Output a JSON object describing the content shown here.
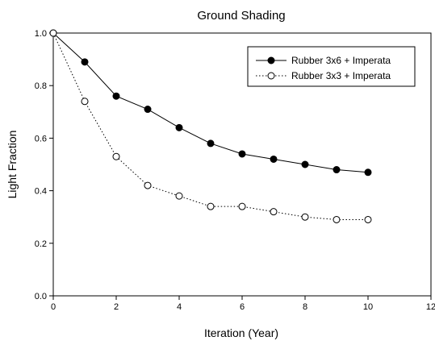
{
  "chart_data": {
    "type": "line",
    "title": "Ground Shading",
    "xlabel": "Iteration (Year)",
    "ylabel": "Light Fraction",
    "xlim": [
      0,
      12
    ],
    "ylim": [
      0,
      1.0
    ],
    "xticks": [
      0,
      2,
      4,
      6,
      8,
      10,
      12
    ],
    "yticks": [
      0.0,
      0.2,
      0.4,
      0.6,
      0.8,
      1.0
    ],
    "xtick_labels": [
      "0",
      "2",
      "4",
      "6",
      "8",
      "10",
      "12"
    ],
    "ytick_labels": [
      "0.0",
      "0.2",
      "0.4",
      "0.6",
      "0.8",
      "1.0"
    ],
    "grid": false,
    "legend_position": "top-right",
    "series": [
      {
        "name": "Rubber 3x6 + Imperata",
        "marker": "filled-circle",
        "line_style": "solid",
        "color": "#000000",
        "x": [
          0,
          1,
          2,
          3,
          4,
          5,
          6,
          7,
          8,
          9,
          10
        ],
        "y": [
          1.0,
          0.89,
          0.76,
          0.71,
          0.64,
          0.58,
          0.54,
          0.52,
          0.5,
          0.48,
          0.47
        ]
      },
      {
        "name": "Rubber 3x3 + Imperata",
        "marker": "open-circle",
        "line_style": "dotted",
        "color": "#000000",
        "x": [
          0,
          1,
          2,
          3,
          4,
          5,
          6,
          7,
          8,
          9,
          10
        ],
        "y": [
          1.0,
          0.74,
          0.53,
          0.42,
          0.38,
          0.34,
          0.34,
          0.32,
          0.3,
          0.29,
          0.29
        ]
      }
    ]
  }
}
